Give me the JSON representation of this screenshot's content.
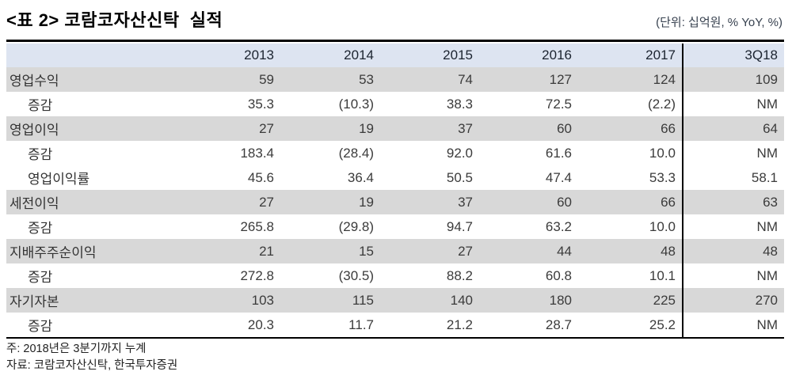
{
  "header": {
    "title": "<표 2> 코람코자산신탁  실적",
    "unit": "(단위: 십억원, % YoY, %)"
  },
  "table": {
    "columns": [
      "",
      "2013",
      "2014",
      "2015",
      "2016",
      "2017",
      "3Q18"
    ],
    "rows": [
      {
        "label": "영업수익",
        "indent": false,
        "shaded": true,
        "values": [
          "59",
          "53",
          "74",
          "127",
          "124",
          "109"
        ]
      },
      {
        "label": "증감",
        "indent": true,
        "shaded": false,
        "values": [
          "35.3",
          "(10.3)",
          "38.3",
          "72.5",
          "(2.2)",
          "NM"
        ]
      },
      {
        "label": "영업이익",
        "indent": false,
        "shaded": true,
        "values": [
          "27",
          "19",
          "37",
          "60",
          "66",
          "64"
        ]
      },
      {
        "label": "증감",
        "indent": true,
        "shaded": false,
        "values": [
          "183.4",
          "(28.4)",
          "92.0",
          "61.6",
          "10.0",
          "NM"
        ]
      },
      {
        "label": "영업이익률",
        "indent": true,
        "shaded": false,
        "values": [
          "45.6",
          "36.4",
          "50.5",
          "47.4",
          "53.3",
          "58.1"
        ]
      },
      {
        "label": "세전이익",
        "indent": false,
        "shaded": true,
        "values": [
          "27",
          "19",
          "37",
          "60",
          "66",
          "63"
        ]
      },
      {
        "label": "증감",
        "indent": true,
        "shaded": false,
        "values": [
          "265.8",
          "(29.8)",
          "94.7",
          "63.2",
          "10.0",
          "NM"
        ]
      },
      {
        "label": "지배주주순이익",
        "indent": false,
        "shaded": true,
        "values": [
          "21",
          "15",
          "27",
          "44",
          "48",
          "48"
        ]
      },
      {
        "label": "증감",
        "indent": true,
        "shaded": false,
        "values": [
          "272.8",
          "(30.5)",
          "88.2",
          "60.8",
          "10.1",
          "NM"
        ]
      },
      {
        "label": "자기자본",
        "indent": false,
        "shaded": true,
        "values": [
          "103",
          "115",
          "140",
          "180",
          "225",
          "270"
        ]
      },
      {
        "label": "증감",
        "indent": true,
        "shaded": false,
        "values": [
          "20.3",
          "11.7",
          "21.2",
          "28.7",
          "25.2",
          "NM"
        ]
      }
    ]
  },
  "notes": [
    "주: 2018년은 3분기까지 누계",
    "자료: 코람코자산신탁, 한국투자증권"
  ],
  "colors": {
    "header_row_bg": "#dde4f1",
    "shaded_row_bg": "#d8d8d8",
    "table_border": "#000000",
    "body_text": "#3b3b3b",
    "title_text": "#000000",
    "unit_text": "#37414f"
  }
}
